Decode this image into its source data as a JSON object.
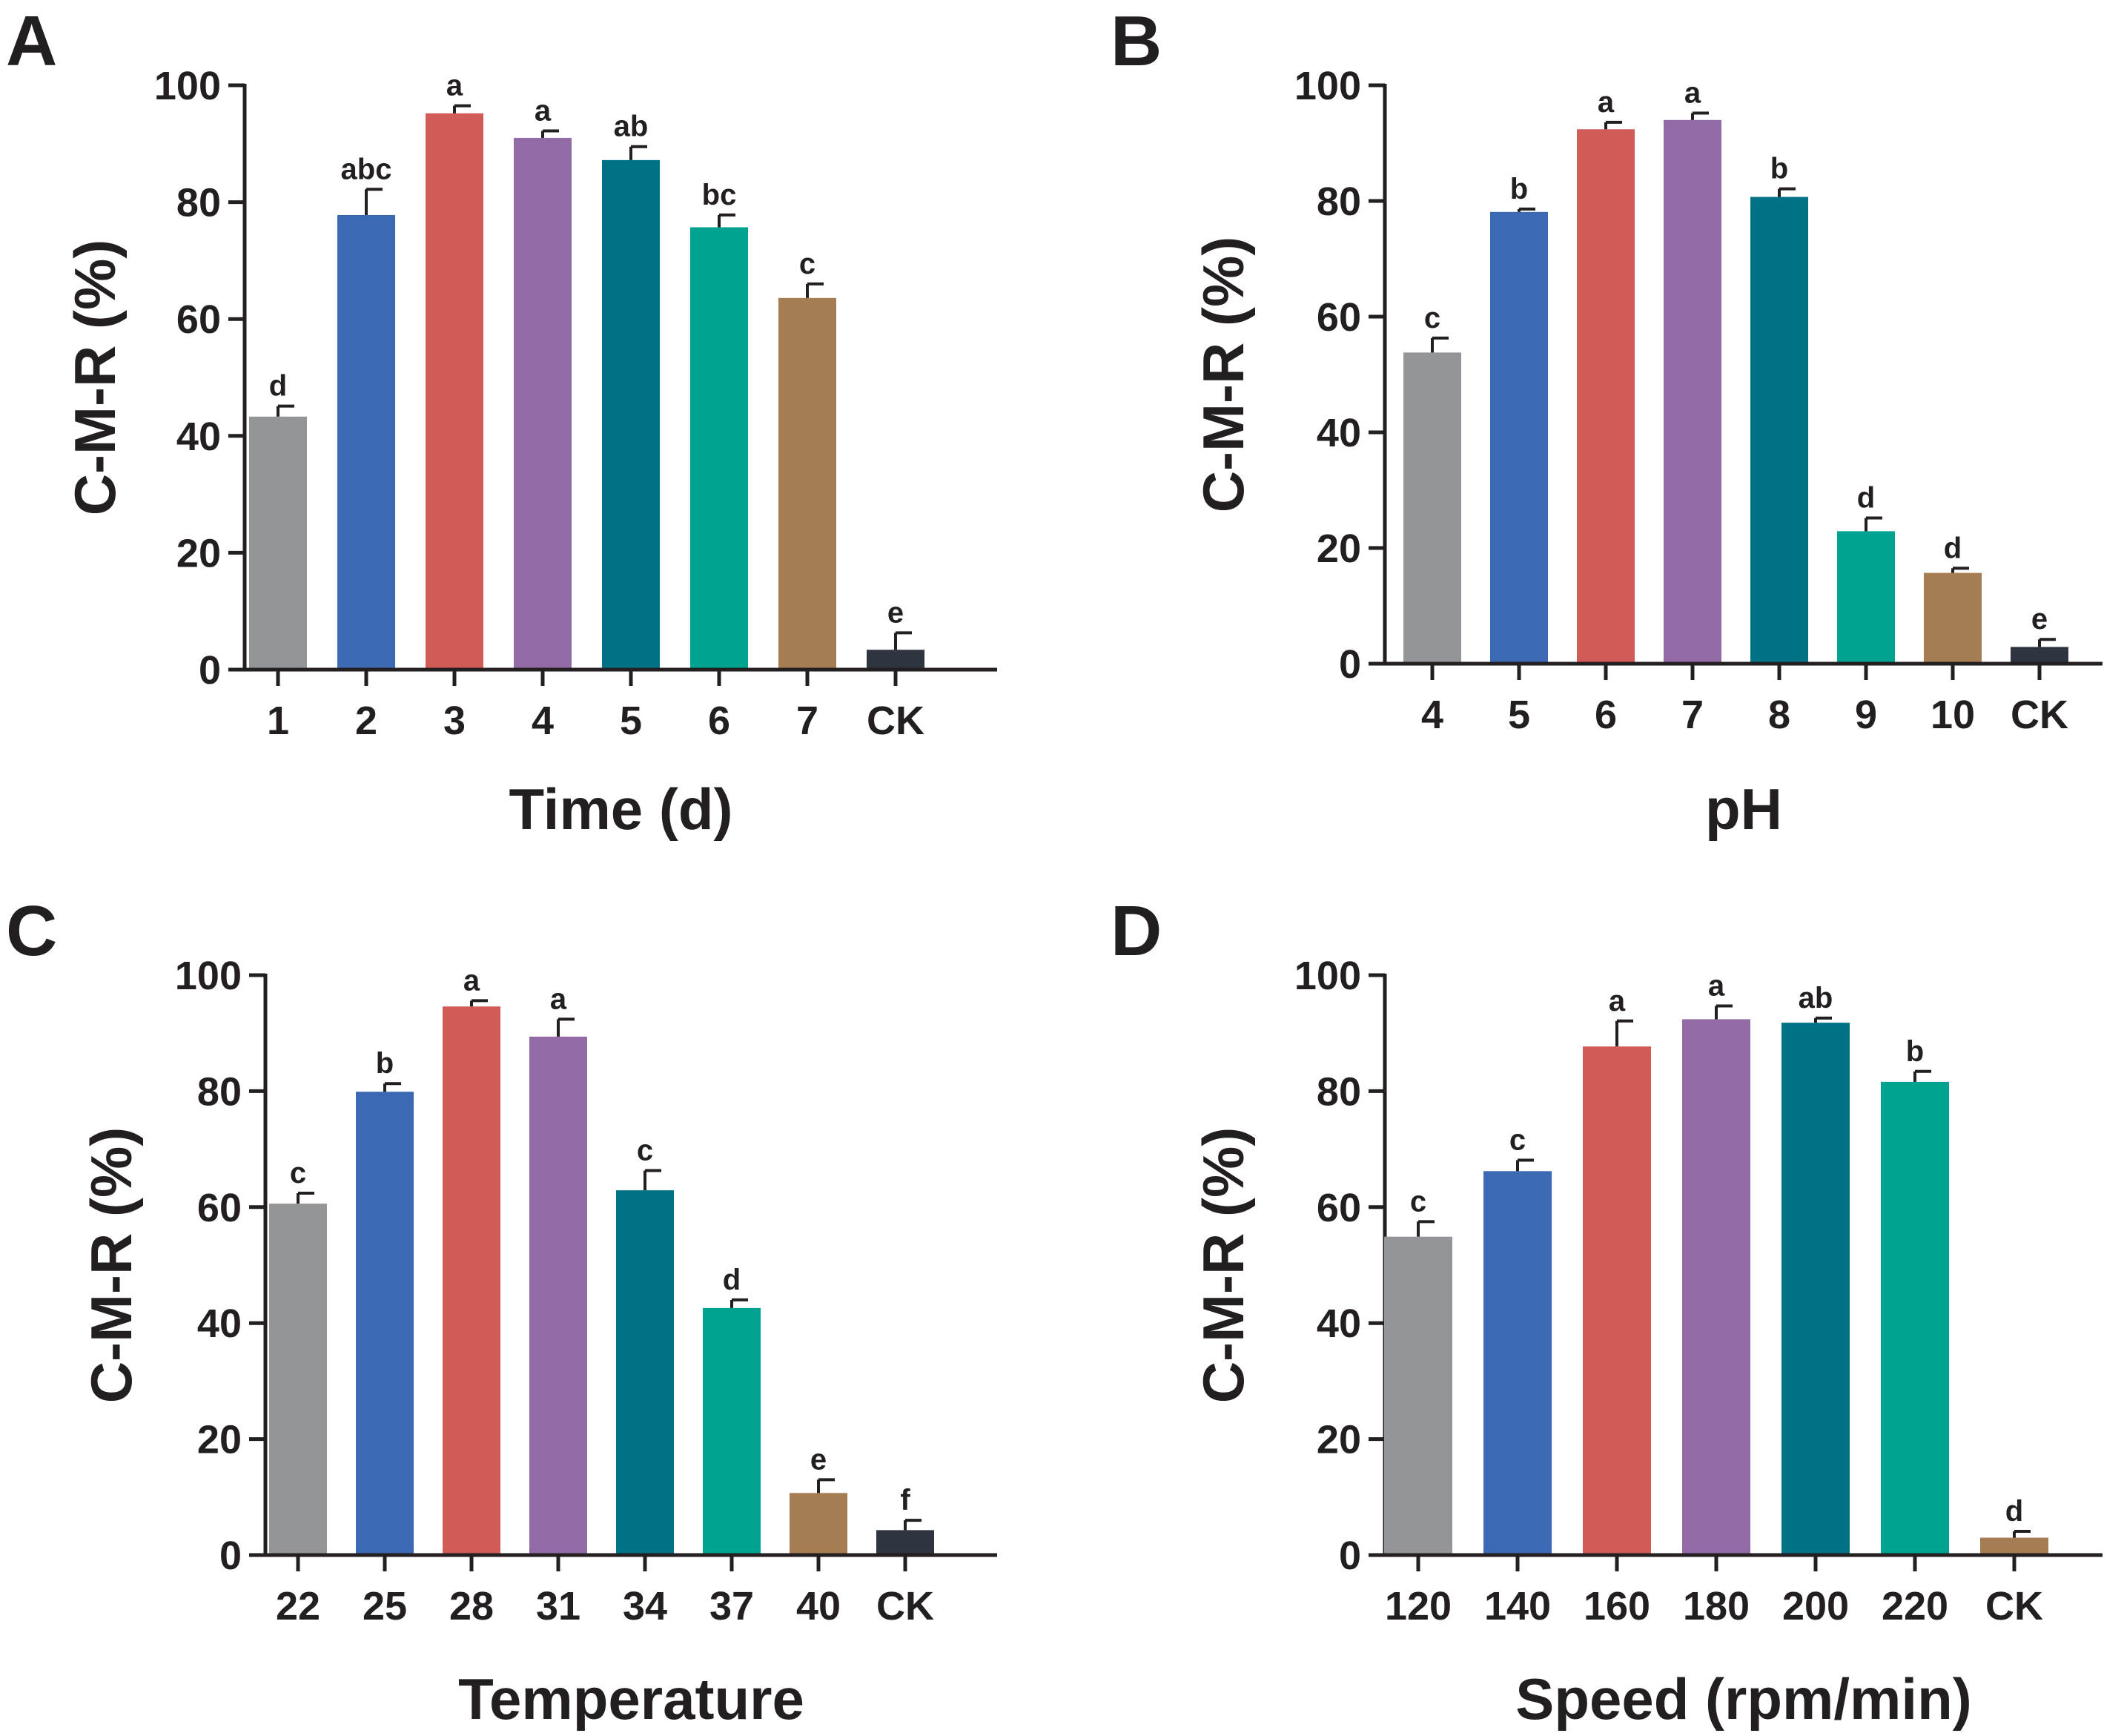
{
  "figure": {
    "panels": [
      "A",
      "B",
      "C",
      "D"
    ]
  },
  "colors": {
    "axis": "#231f20",
    "bars": [
      "#939598",
      "#3b69b3",
      "#d15b56",
      "#916aa6",
      "#007286",
      "#00a38f",
      "#a67c52",
      "#2f3441"
    ]
  },
  "chart_data": [
    {
      "panel": "A",
      "type": "bar",
      "title": "",
      "xlabel": "Time (d)",
      "ylabel": "C-M-R (%)",
      "ylim": [
        0,
        100
      ],
      "yticks": [
        "0",
        "20",
        "40",
        "60",
        "80",
        "100"
      ],
      "categories": [
        "1",
        "2",
        "3",
        "4",
        "5",
        "6",
        "7",
        "CK"
      ],
      "values": [
        43.3,
        77.8,
        95.2,
        91.0,
        87.2,
        75.7,
        63.6,
        3.4
      ],
      "errors": [
        1.8,
        4.4,
        1.3,
        1.2,
        2.3,
        2.1,
        2.4,
        2.9
      ],
      "letters": [
        "d",
        "abc",
        "a",
        "a",
        "ab",
        "bc",
        "c",
        "e"
      ]
    },
    {
      "panel": "B",
      "type": "bar",
      "title": "",
      "xlabel": "pH",
      "ylabel": "C-M-R (%)",
      "ylim": [
        0,
        100
      ],
      "yticks": [
        "0",
        "20",
        "40",
        "60",
        "80",
        "100"
      ],
      "categories": [
        "4",
        "5",
        "6",
        "7",
        "8",
        "9",
        "10",
        "CK"
      ],
      "values": [
        53.8,
        78.1,
        92.4,
        94.0,
        80.7,
        22.9,
        15.7,
        2.9
      ],
      "errors": [
        2.5,
        0.5,
        1.2,
        1.2,
        1.4,
        2.3,
        0.8,
        1.3
      ],
      "letters": [
        "c",
        "b",
        "a",
        "a",
        "b",
        "d",
        "d",
        "e"
      ]
    },
    {
      "panel": "C",
      "type": "bar",
      "title": "",
      "xlabel": "Temperature",
      "ylabel": "C-M-R (%)",
      "ylim": [
        0,
        100
      ],
      "yticks": [
        "0",
        "20",
        "40",
        "60",
        "80",
        "100"
      ],
      "categories": [
        "22",
        "25",
        "28",
        "31",
        "34",
        "37",
        "40",
        "CK"
      ],
      "values": [
        60.6,
        79.9,
        94.6,
        89.4,
        62.9,
        42.6,
        10.7,
        4.3
      ],
      "errors": [
        1.8,
        1.4,
        1.0,
        3.0,
        3.4,
        1.4,
        2.3,
        1.7
      ],
      "letters": [
        "c",
        "b",
        "a",
        "a",
        "c",
        "d",
        "e",
        "f"
      ]
    },
    {
      "panel": "D",
      "type": "bar",
      "title": "",
      "xlabel": "Speed (rpm/min)",
      "ylabel": "C-M-R (%)",
      "ylim": [
        0,
        100
      ],
      "yticks": [
        "0",
        "20",
        "40",
        "60",
        "80",
        "100"
      ],
      "categories": [
        "120",
        "140",
        "160",
        "180",
        "200",
        "220",
        "CK"
      ],
      "values": [
        54.9,
        66.2,
        87.7,
        92.4,
        91.8,
        81.6,
        3.0
      ],
      "errors": [
        2.6,
        1.9,
        4.4,
        2.3,
        0.8,
        1.8,
        1.1
      ],
      "letters": [
        "c",
        "c",
        "a",
        "a",
        "ab",
        "b",
        "d"
      ]
    }
  ]
}
